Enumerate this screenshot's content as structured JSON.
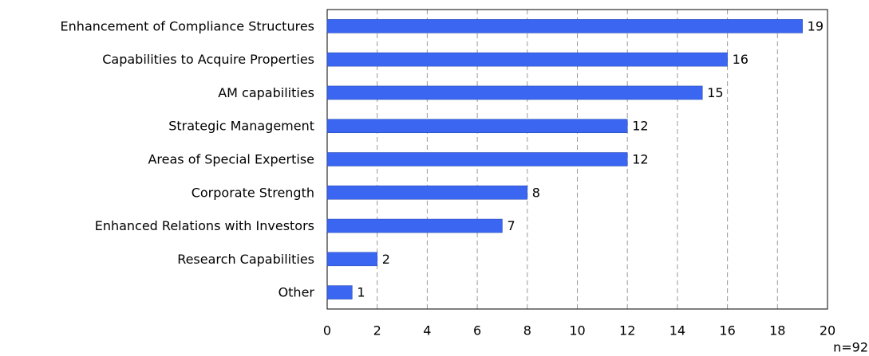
{
  "chart_data": {
    "type": "bar",
    "orientation": "horizontal",
    "categories": [
      "Enhancement of Compliance Structures",
      "Capabilities to Acquire Properties",
      "AM capabilities",
      "Strategic Management",
      "Areas of Special Expertise",
      "Corporate Strength",
      "Enhanced Relations with Investors",
      "Research Capabilities",
      "Other"
    ],
    "values": [
      19,
      16,
      15,
      12,
      12,
      8,
      7,
      2,
      1
    ],
    "color": "#3a66f2",
    "xlim": [
      0,
      20
    ],
    "xticks": [
      0,
      2,
      4,
      6,
      8,
      10,
      12,
      14,
      16,
      18,
      20
    ],
    "grid": true,
    "note": "n=92"
  }
}
